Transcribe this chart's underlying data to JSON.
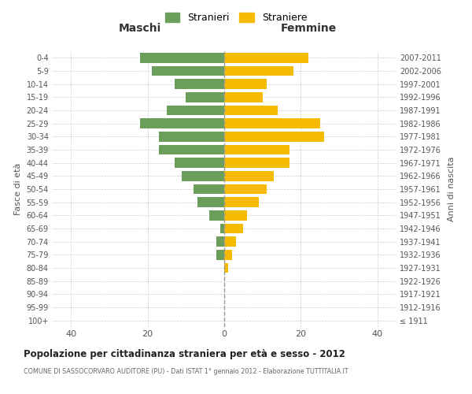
{
  "age_groups": [
    "100+",
    "95-99",
    "90-94",
    "85-89",
    "80-84",
    "75-79",
    "70-74",
    "65-69",
    "60-64",
    "55-59",
    "50-54",
    "45-49",
    "40-44",
    "35-39",
    "30-34",
    "25-29",
    "20-24",
    "15-19",
    "10-14",
    "5-9",
    "0-4"
  ],
  "birth_years": [
    "≤ 1911",
    "1912-1916",
    "1917-1921",
    "1922-1926",
    "1927-1931",
    "1932-1936",
    "1937-1941",
    "1942-1946",
    "1947-1951",
    "1952-1956",
    "1957-1961",
    "1962-1966",
    "1967-1971",
    "1972-1976",
    "1977-1981",
    "1982-1986",
    "1987-1991",
    "1992-1996",
    "1997-2001",
    "2002-2006",
    "2007-2011"
  ],
  "maschi": [
    0,
    0,
    0,
    0,
    0,
    2,
    2,
    1,
    4,
    7,
    8,
    11,
    13,
    17,
    17,
    22,
    15,
    10,
    13,
    19,
    22
  ],
  "femmine": [
    0,
    0,
    0,
    0,
    1,
    2,
    3,
    5,
    6,
    9,
    11,
    13,
    17,
    17,
    26,
    25,
    14,
    10,
    11,
    18,
    22
  ],
  "color_maschi": "#6a9e5a",
  "color_femmine": "#f5bb00",
  "title": "Popolazione per cittadinanza straniera per età e sesso - 2012",
  "subtitle": "COMUNE DI SASSOCORVARO AUDITORE (PU) - Dati ISTAT 1° gennaio 2012 - Elaborazione TUTTITALIA.IT",
  "xlabel_left": "Maschi",
  "xlabel_right": "Femmine",
  "ylabel_left": "Fasce di età",
  "ylabel_right": "Anni di nascita",
  "legend_maschi": "Stranieri",
  "legend_femmine": "Straniere",
  "xlim": 45,
  "background_color": "#ffffff",
  "grid_color": "#cccccc"
}
